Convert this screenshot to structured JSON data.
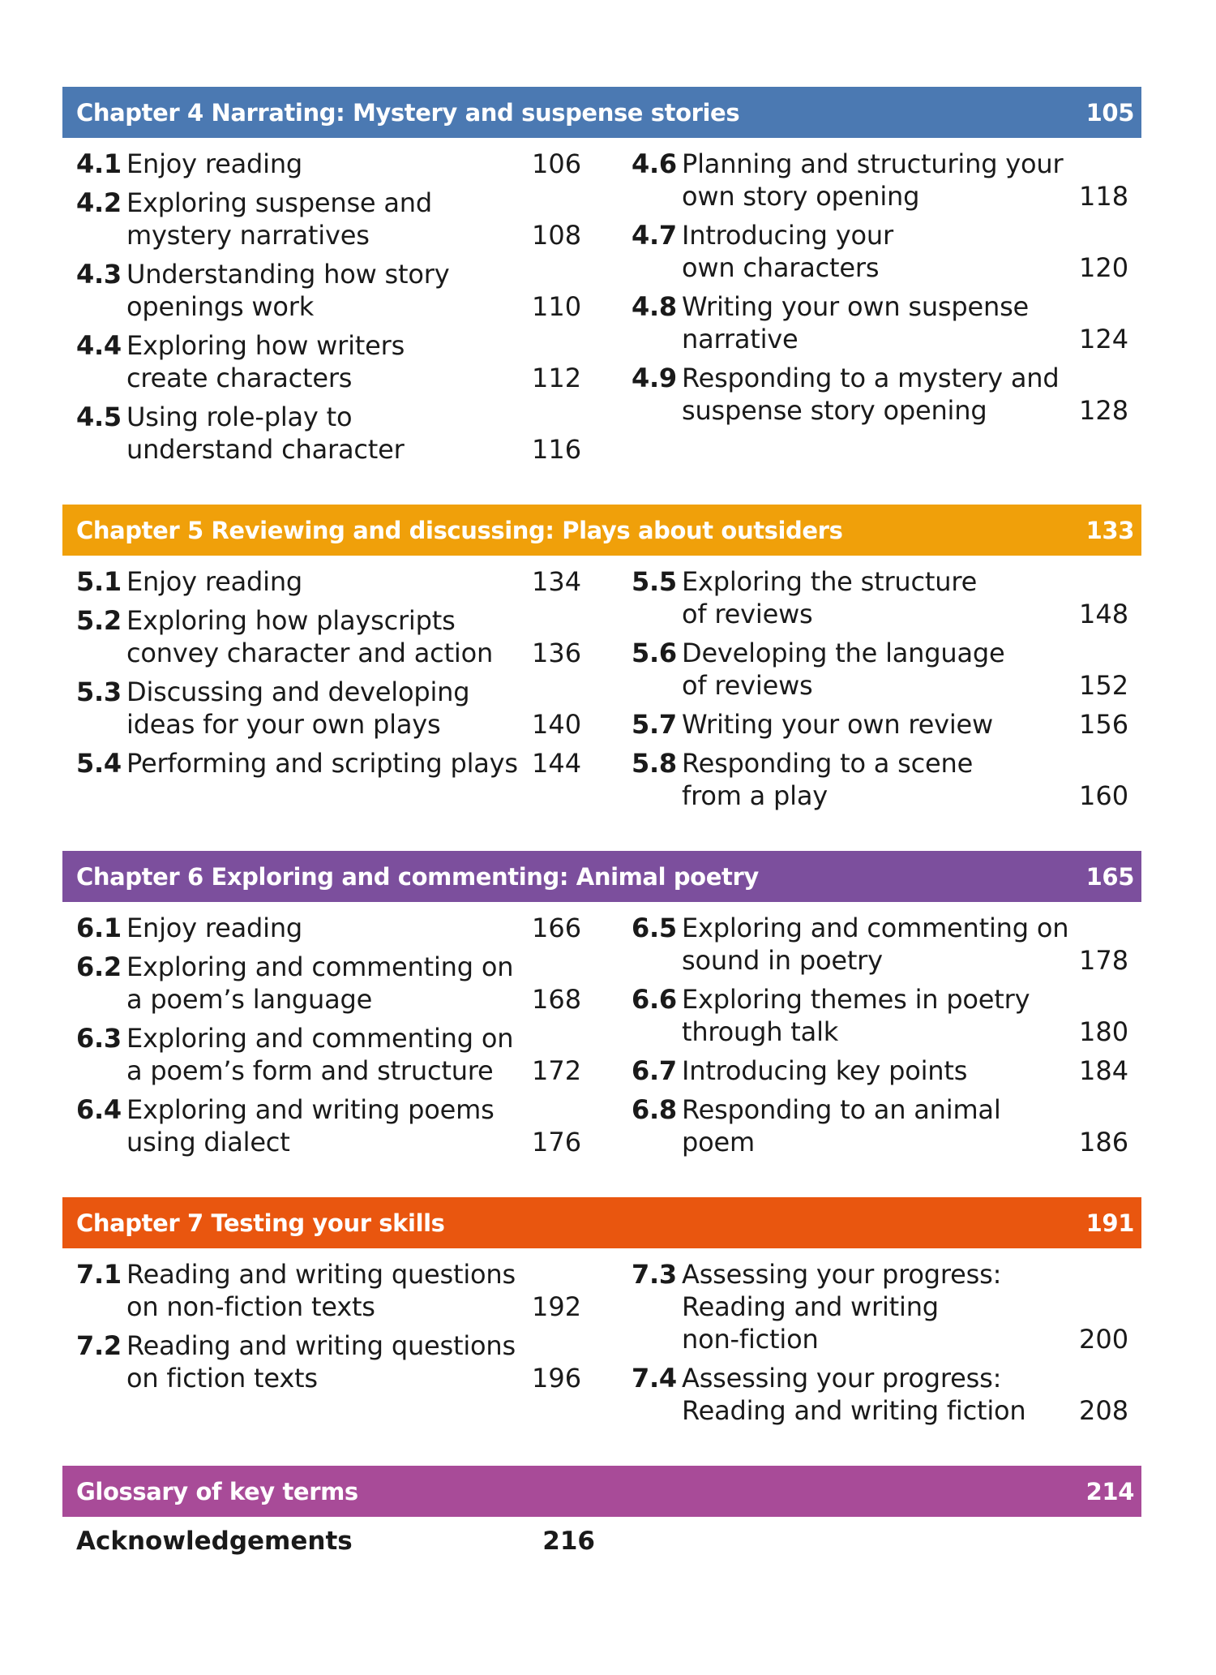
{
  "colors": {
    "chapter4": "#4b79b2",
    "chapter5": "#f0a00a",
    "chapter6": "#7c4f9d",
    "chapter7": "#e9560f",
    "glossary": "#a84b98"
  },
  "chapters": [
    {
      "title": "Chapter 4 Narrating: Mystery and suspense stories",
      "page": "105",
      "color_key": "chapter4",
      "left": [
        {
          "num": "4.1",
          "title": "Enjoy reading",
          "page": "106"
        },
        {
          "num": "4.2",
          "title": "Exploring suspense and\nmystery narratives",
          "page": "108"
        },
        {
          "num": "4.3",
          "title": "Understanding how story\nopenings work",
          "page": "110"
        },
        {
          "num": "4.4",
          "title": "Exploring how writers\ncreate characters",
          "page": "112"
        },
        {
          "num": "4.5",
          "title": "Using role-play to\nunderstand character",
          "page": "116"
        }
      ],
      "right": [
        {
          "num": "4.6",
          "title": "Planning and structuring your\nown story opening",
          "page": "118"
        },
        {
          "num": "4.7",
          "title": "Introducing your\nown characters",
          "page": "120"
        },
        {
          "num": "4.8",
          "title": "Writing your own suspense\nnarrative",
          "page": "124"
        },
        {
          "num": "4.9",
          "title": "Responding to a mystery and\nsuspense story opening",
          "page": "128"
        }
      ]
    },
    {
      "title": "Chapter 5 Reviewing and discussing: Plays about outsiders",
      "page": "133",
      "color_key": "chapter5",
      "left": [
        {
          "num": "5.1",
          "title": "Enjoy reading",
          "page": "134"
        },
        {
          "num": "5.2",
          "title": "Exploring how playscripts\nconvey character and action",
          "page": "136"
        },
        {
          "num": "5.3",
          "title": "Discussing and developing\nideas for your own plays",
          "page": "140"
        },
        {
          "num": "5.4",
          "title": "Performing and scripting plays",
          "page": "144"
        }
      ],
      "right": [
        {
          "num": "5.5",
          "title": "Exploring the structure\nof reviews",
          "page": "148"
        },
        {
          "num": "5.6",
          "title": "Developing the language\nof reviews",
          "page": "152"
        },
        {
          "num": "5.7",
          "title": "Writing your own review",
          "page": "156"
        },
        {
          "num": "5.8",
          "title": "Responding to a scene\nfrom a play",
          "page": "160"
        }
      ]
    },
    {
      "title": "Chapter 6 Exploring and commenting: Animal poetry",
      "page": "165",
      "color_key": "chapter6",
      "left": [
        {
          "num": "6.1",
          "title": "Enjoy reading",
          "page": "166"
        },
        {
          "num": "6.2",
          "title": "Exploring and commenting on\na poem’s language",
          "page": "168"
        },
        {
          "num": "6.3",
          "title": "Exploring and commenting on\na poem’s form and structure",
          "page": "172"
        },
        {
          "num": "6.4",
          "title": "Exploring and writing poems\nusing dialect",
          "page": "176"
        }
      ],
      "right": [
        {
          "num": "6.5",
          "title": "Exploring and commenting on\nsound in poetry",
          "page": "178"
        },
        {
          "num": "6.6",
          "title": "Exploring themes in poetry\nthrough talk",
          "page": "180"
        },
        {
          "num": "6.7",
          "title": "Introducing key points",
          "page": "184"
        },
        {
          "num": "6.8",
          "title": "Responding to an animal poem",
          "page": "186"
        }
      ]
    },
    {
      "title": "Chapter 7 Testing your skills",
      "page": "191",
      "color_key": "chapter7",
      "left": [
        {
          "num": "7.1",
          "title": "Reading and writing questions\non non-fiction texts",
          "page": "192"
        },
        {
          "num": "7.2",
          "title": "Reading and writing questions\non fiction texts",
          "page": "196"
        }
      ],
      "right": [
        {
          "num": "7.3",
          "title": "Assessing your progress:\nReading and writing\nnon-fiction",
          "page": "200"
        },
        {
          "num": "7.4",
          "title": "Assessing your progress:\nReading and writing fiction",
          "page": "208"
        }
      ]
    }
  ],
  "glossary": {
    "title": "Glossary of key terms",
    "page": "214"
  },
  "acknowledgements": {
    "label": "Acknowledgements",
    "page": "216"
  }
}
